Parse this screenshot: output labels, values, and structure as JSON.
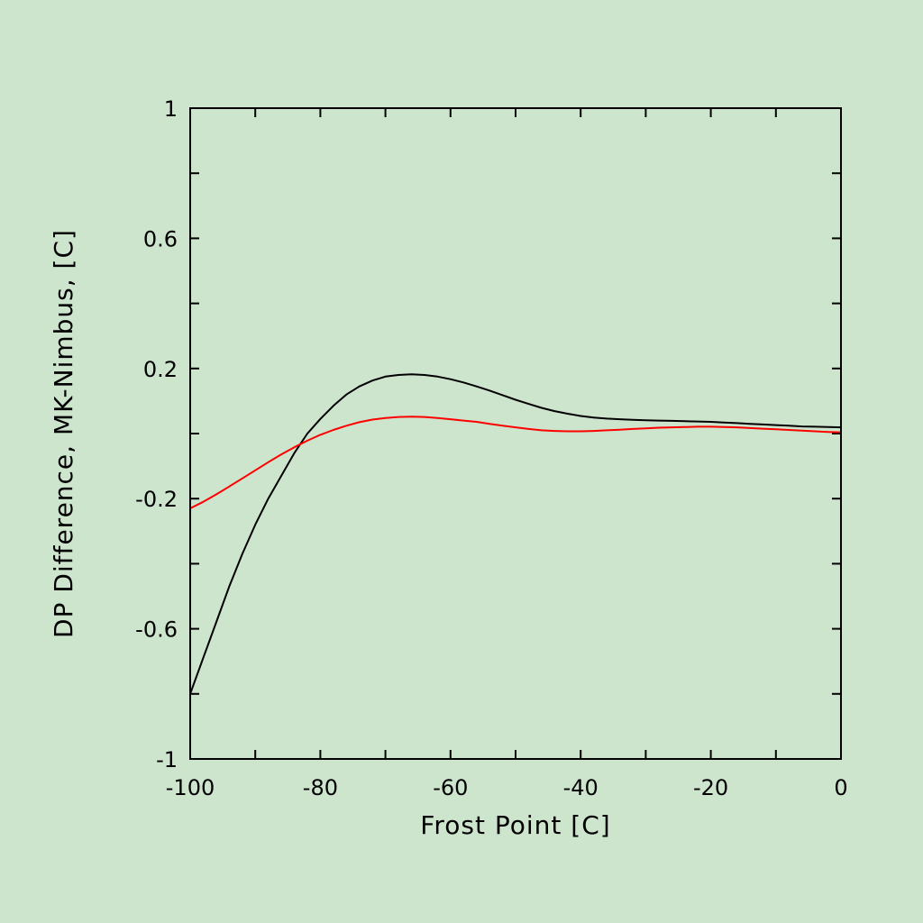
{
  "colors": {
    "background": "#cde4cd",
    "axes": "#000000"
  },
  "chart_data": {
    "type": "line",
    "title": "",
    "xlabel": "Frost Point [C]",
    "ylabel": "DP Difference, MK-Nimbus, [C]",
    "xlim": [
      -100,
      0
    ],
    "ylim": [
      -1,
      1
    ],
    "x_ticks": [
      -100,
      -80,
      -60,
      -40,
      -20,
      0
    ],
    "x_tick_labels": [
      "-100",
      "-80",
      "-60",
      "-40",
      "-20",
      "0"
    ],
    "x_minor_step": 10,
    "y_ticks": [
      -1,
      -0.6,
      -0.2,
      0.2,
      0.6,
      1
    ],
    "y_tick_labels": [
      "-1",
      "-0.6",
      "-0.2",
      "0.2",
      "0.6",
      "1"
    ],
    "y_minor_step": 0.2,
    "grid": false,
    "series": [
      {
        "color": "#000000",
        "x": [
          -100,
          -98,
          -96,
          -94,
          -92,
          -90,
          -88,
          -86,
          -84,
          -82,
          -80,
          -78,
          -76,
          -74,
          -72,
          -70,
          -68,
          -66,
          -64,
          -62,
          -60,
          -58,
          -56,
          -54,
          -52,
          -50,
          -48,
          -46,
          -44,
          -42,
          -40,
          -38,
          -36,
          -34,
          -32,
          -30,
          -28,
          -26,
          -24,
          -22,
          -20,
          -18,
          -16,
          -14,
          -12,
          -10,
          -8,
          -6,
          -4,
          -2,
          0
        ],
        "y": [
          -0.8,
          -0.69,
          -0.58,
          -0.47,
          -0.37,
          -0.28,
          -0.2,
          -0.13,
          -0.06,
          0.0,
          0.045,
          0.085,
          0.12,
          0.145,
          0.163,
          0.175,
          0.18,
          0.182,
          0.18,
          0.175,
          0.167,
          0.157,
          0.145,
          0.132,
          0.118,
          0.104,
          0.091,
          0.079,
          0.069,
          0.061,
          0.054,
          0.049,
          0.046,
          0.044,
          0.042,
          0.041,
          0.04,
          0.039,
          0.038,
          0.037,
          0.036,
          0.034,
          0.032,
          0.03,
          0.028,
          0.026,
          0.024,
          0.022,
          0.021,
          0.02,
          0.019
        ]
      },
      {
        "color": "#ff0000",
        "x": [
          -100,
          -98,
          -96,
          -94,
          -92,
          -90,
          -88,
          -86,
          -84,
          -82,
          -80,
          -78,
          -76,
          -74,
          -72,
          -70,
          -68,
          -66,
          -64,
          -62,
          -60,
          -58,
          -56,
          -54,
          -52,
          -50,
          -48,
          -46,
          -44,
          -42,
          -40,
          -38,
          -36,
          -34,
          -32,
          -30,
          -28,
          -26,
          -24,
          -22,
          -20,
          -18,
          -16,
          -14,
          -12,
          -10,
          -8,
          -6,
          -4,
          -2,
          0
        ],
        "y": [
          -0.23,
          -0.21,
          -0.187,
          -0.163,
          -0.138,
          -0.113,
          -0.088,
          -0.064,
          -0.042,
          -0.022,
          -0.004,
          0.011,
          0.024,
          0.035,
          0.043,
          0.048,
          0.051,
          0.052,
          0.051,
          0.048,
          0.044,
          0.04,
          0.036,
          0.03,
          0.024,
          0.019,
          0.014,
          0.01,
          0.008,
          0.007,
          0.007,
          0.008,
          0.01,
          0.012,
          0.014,
          0.016,
          0.018,
          0.019,
          0.02,
          0.021,
          0.021,
          0.02,
          0.019,
          0.017,
          0.015,
          0.013,
          0.011,
          0.009,
          0.007,
          0.005,
          0.004
        ]
      }
    ]
  }
}
